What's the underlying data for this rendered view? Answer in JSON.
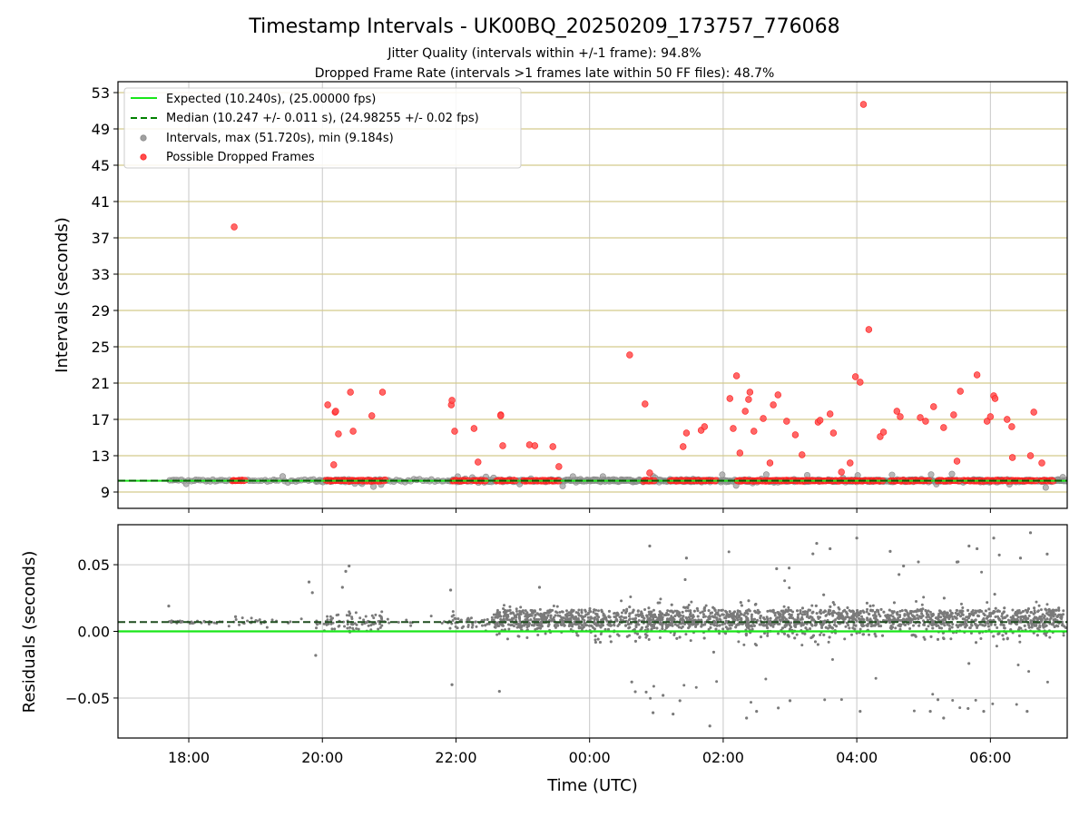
{
  "chart_data": [
    {
      "type": "scatter",
      "title": "Timestamp Intervals - UK00BQ_20250209_173757_776068",
      "subtitle_1": "Jitter Quality (intervals within +/-1 frame): 94.8%",
      "subtitle_2": "Dropped Frame Rate (intervals >1 frames late within 50 FF files): 48.7%",
      "ylabel": "Intervals (seconds)",
      "ylim": [
        7.2,
        54.2
      ],
      "xlim_hours": [
        16.94,
        31.15
      ],
      "yticks": [
        9,
        13,
        17,
        21,
        25,
        29,
        33,
        37,
        41,
        45,
        49,
        53
      ],
      "ytick_labels": [
        "9",
        "13",
        "17",
        "21",
        "25",
        "29",
        "33",
        "37",
        "41",
        "45",
        "49",
        "53"
      ],
      "grid": true,
      "legend_position": "upper-left",
      "legend": [
        {
          "label": "Expected (10.240s), (25.00000 fps)",
          "kind": "line-solid",
          "color": "#19e619"
        },
        {
          "label": "Median (10.247 +/- 0.011 s), (24.98255 +/- 0.02 fps)",
          "kind": "line-dashed",
          "color": "#008000"
        },
        {
          "label": "Intervals, max (51.720s), min (9.184s)",
          "kind": "marker",
          "color": "#a0a0a0"
        },
        {
          "label": "Possible Dropped Frames",
          "kind": "marker",
          "color": "#ff4c4c"
        }
      ],
      "expected_interval": 10.24,
      "median_interval": 10.247,
      "series": [
        {
          "name": "Possible Dropped Frames",
          "color": "#ff4c4c",
          "x_hours": [
            18.68,
            20.08,
            20.17,
            20.19,
            20.2,
            20.24,
            20.42,
            20.46,
            20.74,
            20.9,
            21.93,
            21.94,
            21.98,
            22.27,
            22.33,
            22.67,
            22.7,
            22.67,
            23.1,
            23.18,
            23.45,
            23.54,
            24.6,
            24.83,
            24.9,
            25.4,
            25.45,
            25.67,
            25.72,
            26.1,
            26.15,
            26.2,
            26.25,
            26.33,
            26.38,
            26.4,
            26.46,
            26.6,
            26.7,
            26.75,
            26.82,
            26.95,
            27.08,
            27.18,
            27.42,
            27.45,
            27.6,
            27.65,
            27.77,
            27.9,
            27.98,
            28.05,
            28.1,
            28.18,
            28.35,
            28.4,
            28.6,
            28.65,
            28.95,
            29.03,
            29.15,
            29.3,
            29.45,
            29.5,
            29.55,
            29.8,
            29.95,
            30.0,
            30.05,
            30.07,
            30.25,
            30.33,
            30.32,
            30.6,
            30.65,
            30.77
          ],
          "y": [
            38.2,
            18.6,
            12.0,
            17.8,
            17.9,
            15.4,
            20.0,
            15.7,
            17.4,
            20.0,
            18.6,
            19.1,
            15.7,
            16.0,
            12.3,
            17.5,
            14.1,
            17.4,
            14.2,
            14.1,
            14.0,
            11.8,
            24.1,
            18.7,
            11.1,
            14.0,
            15.5,
            15.8,
            16.2,
            19.3,
            16.0,
            21.8,
            13.3,
            17.9,
            19.2,
            20.0,
            15.7,
            17.1,
            12.2,
            18.6,
            19.7,
            16.8,
            15.3,
            13.1,
            16.7,
            16.9,
            17.6,
            15.5,
            11.2,
            12.2,
            21.7,
            21.1,
            51.7,
            26.9,
            15.1,
            15.6,
            17.9,
            17.3,
            17.2,
            16.8,
            18.4,
            16.1,
            17.5,
            12.4,
            20.1,
            21.9,
            16.8,
            17.3,
            19.6,
            19.3,
            17.0,
            12.8,
            16.2,
            13.0,
            17.8,
            12.2
          ]
        }
      ]
    },
    {
      "type": "scatter",
      "ylabel": "Residuals (seconds)",
      "xlabel": "Time (UTC)",
      "ylim": [
        -0.08,
        0.08
      ],
      "xlim_hours": [
        16.94,
        31.15
      ],
      "yticks": [
        0.05,
        0.0,
        -0.05
      ],
      "ytick_labels": [
        "0.05",
        "0.00",
        "−0.05"
      ],
      "xticks_hours": [
        18,
        20,
        22,
        24,
        26,
        28,
        30
      ],
      "xtick_labels": [
        "18:00",
        "20:00",
        "22:00",
        "00:00",
        "02:00",
        "04:00",
        "06:00"
      ],
      "grid": true,
      "expected_residual": 0.0,
      "median_residual": 0.007,
      "series": [
        {
          "name": "Residuals",
          "color": "#7a7a7a",
          "x_hours": [
            17.7,
            18.7,
            19.8,
            19.85,
            19.9,
            20.3,
            20.35,
            20.4,
            21.92,
            21.94,
            22.65,
            23.25,
            24.9,
            24.95,
            25.1,
            25.25,
            25.45,
            25.8,
            26.35,
            26.5,
            26.8,
            27.0,
            27.4,
            27.6,
            28.0,
            28.05,
            28.5,
            28.7,
            29.1,
            29.3,
            29.5,
            29.68,
            29.8,
            29.9,
            30.05,
            30.45,
            30.55,
            30.6,
            30.85
          ],
          "y": [
            0.019,
            0.011,
            0.037,
            0.029,
            -0.018,
            0.033,
            0.045,
            0.049,
            0.031,
            -0.04,
            -0.045,
            0.033,
            0.064,
            -0.061,
            -0.048,
            -0.062,
            0.055,
            -0.071,
            -0.065,
            -0.06,
            0.047,
            -0.052,
            0.066,
            0.062,
            0.07,
            -0.06,
            0.06,
            0.049,
            -0.06,
            -0.065,
            0.052,
            0.064,
            0.062,
            -0.06,
            0.07,
            0.055,
            -0.06,
            0.074,
            0.058
          ]
        }
      ]
    }
  ]
}
